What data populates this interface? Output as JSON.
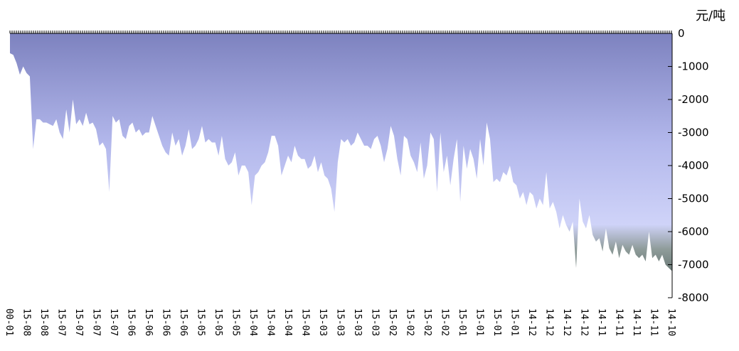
{
  "chart_data": {
    "type": "area",
    "unit_label": "元/吨",
    "ylim": [
      -8000,
      0
    ],
    "y_ticks": [
      0,
      -1000,
      -2000,
      -3000,
      -4000,
      -5000,
      -6000,
      -7000,
      -8000
    ],
    "y_tick_labels": [
      "0",
      "-1000",
      "-2000",
      "-3000",
      "-4000",
      "-5000",
      "-6000",
      "-7000",
      "-8000"
    ],
    "x_tick_labels": [
      "00-01",
      "15-08",
      "15-08",
      "15-07",
      "15-07",
      "15-07",
      "15-07",
      "15-06",
      "15-06",
      "15-06",
      "15-06",
      "15-05",
      "15-05",
      "15-05",
      "15-04",
      "15-04",
      "15-04",
      "15-04",
      "15-03",
      "15-03",
      "15-03",
      "15-03",
      "15-02",
      "15-02",
      "15-02",
      "15-02",
      "15-01",
      "15-01",
      "15-01",
      "15-01",
      "14-12",
      "14-12",
      "14-12",
      "14-12",
      "14-11",
      "14-11",
      "14-11",
      "14-11",
      "14-10"
    ],
    "values": [
      -600,
      -650,
      -900,
      -1250,
      -1000,
      -1200,
      -1300,
      -3500,
      -2600,
      -2600,
      -2700,
      -2700,
      -2750,
      -2800,
      -2600,
      -3000,
      -3200,
      -2300,
      -3000,
      -2000,
      -2750,
      -2600,
      -2800,
      -2400,
      -2750,
      -2700,
      -2900,
      -3400,
      -3300,
      -3500,
      -4800,
      -2500,
      -2700,
      -2600,
      -3100,
      -3200,
      -2800,
      -2700,
      -3000,
      -2900,
      -3100,
      -3000,
      -3000,
      -2500,
      -2800,
      -3100,
      -3400,
      -3600,
      -3700,
      -3000,
      -3400,
      -3200,
      -3700,
      -3400,
      -2900,
      -3500,
      -3400,
      -3200,
      -2800,
      -3300,
      -3200,
      -3300,
      -3300,
      -3700,
      -3100,
      -3800,
      -4000,
      -3900,
      -3600,
      -4300,
      -4000,
      -4000,
      -4200,
      -5200,
      -4300,
      -4200,
      -4000,
      -3900,
      -3600,
      -3100,
      -3100,
      -3400,
      -4300,
      -4000,
      -3700,
      -3900,
      -3400,
      -3700,
      -3800,
      -3800,
      -4100,
      -4000,
      -3700,
      -4200,
      -3900,
      -4300,
      -4400,
      -4700,
      -5400,
      -3900,
      -3200,
      -3300,
      -3200,
      -3400,
      -3300,
      -3000,
      -3200,
      -3400,
      -3400,
      -3500,
      -3200,
      -3100,
      -3400,
      -3900,
      -3500,
      -2800,
      -3100,
      -3800,
      -4300,
      -3100,
      -3200,
      -3700,
      -3900,
      -4200,
      -3300,
      -4400,
      -4000,
      -3000,
      -3200,
      -4800,
      -3000,
      -4200,
      -3700,
      -4600,
      -3800,
      -3200,
      -5100,
      -3400,
      -4100,
      -3500,
      -3800,
      -4400,
      -3200,
      -4000,
      -2700,
      -3200,
      -4500,
      -4400,
      -4500,
      -4200,
      -4300,
      -4000,
      -4500,
      -4600,
      -5000,
      -4800,
      -5200,
      -4800,
      -4900,
      -5300,
      -5000,
      -5200,
      -4200,
      -5300,
      -5100,
      -5400,
      -5900,
      -5500,
      -5800,
      -6000,
      -5700,
      -7100,
      -5000,
      -5700,
      -5900,
      -5500,
      -6100,
      -6300,
      -6200,
      -6600,
      -5900,
      -6500,
      -6700,
      -6300,
      -6800,
      -6400,
      -6600,
      -6700,
      -6400,
      -6700,
      -6800,
      -6700,
      -6900,
      -6000,
      -6800,
      -6700,
      -6900,
      -6700,
      -7000,
      -7100,
      -7200
    ]
  }
}
